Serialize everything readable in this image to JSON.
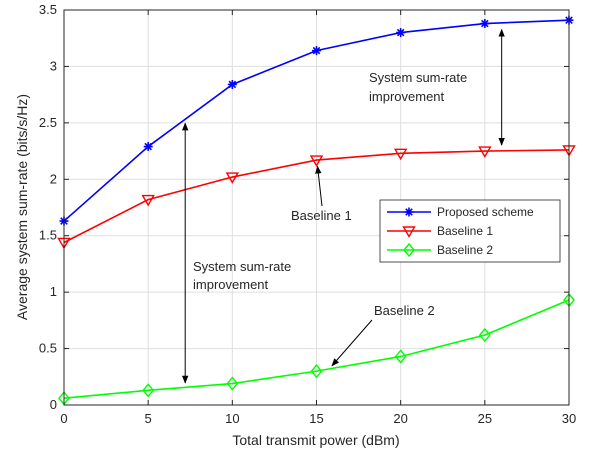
{
  "chart_data": {
    "type": "line",
    "xlabel": "Total transmit power (dBm)",
    "ylabel": "Average system sum-rate (bits/s/Hz)",
    "xlim": [
      0,
      30
    ],
    "ylim": [
      0,
      3.5
    ],
    "x_ticks": [
      0,
      5,
      10,
      15,
      20,
      25,
      30
    ],
    "y_ticks": [
      0,
      0.5,
      1,
      1.5,
      2,
      2.5,
      3,
      3.5
    ],
    "x_tick_labels": [
      "0",
      "5",
      "10",
      "15",
      "20",
      "25",
      "30"
    ],
    "y_tick_labels": [
      "0",
      "0.5",
      "1",
      "1.5",
      "2",
      "2.5",
      "3",
      "3.5"
    ],
    "grid": true,
    "legend_position": "center-right",
    "x": [
      0,
      5,
      10,
      15,
      20,
      25,
      30
    ],
    "series": [
      {
        "name": "Proposed scheme",
        "color": "#0000ff",
        "marker": "asterisk",
        "values": [
          1.63,
          2.29,
          2.84,
          3.14,
          3.3,
          3.38,
          3.41
        ]
      },
      {
        "name": "Baseline 1",
        "color": "#ff0000",
        "marker": "triangle-down",
        "values": [
          1.44,
          1.82,
          2.02,
          2.17,
          2.23,
          2.25,
          2.26
        ]
      },
      {
        "name": "Baseline 2",
        "color": "#00ff00",
        "marker": "diamond",
        "values": [
          0.06,
          0.13,
          0.19,
          0.3,
          0.43,
          0.62,
          0.93
        ]
      }
    ],
    "annotations": [
      {
        "lines": [
          "System sum-rate",
          "improvement"
        ],
        "arrow_type": "double",
        "arrow_x": 26,
        "arrow_y": [
          2.25,
          3.38
        ]
      },
      {
        "lines": [
          "Baseline 1"
        ],
        "arrow_type": "single",
        "arrow_to": [
          15,
          2.15
        ]
      },
      {
        "lines": [
          "System sum-rate",
          "improvement"
        ],
        "arrow_type": "double",
        "arrow_x": 7.2,
        "arrow_y": [
          0.16,
          2.55
        ]
      },
      {
        "lines": [
          "Baseline 2"
        ],
        "arrow_type": "single",
        "arrow_to": [
          15.8,
          0.33
        ]
      }
    ]
  }
}
